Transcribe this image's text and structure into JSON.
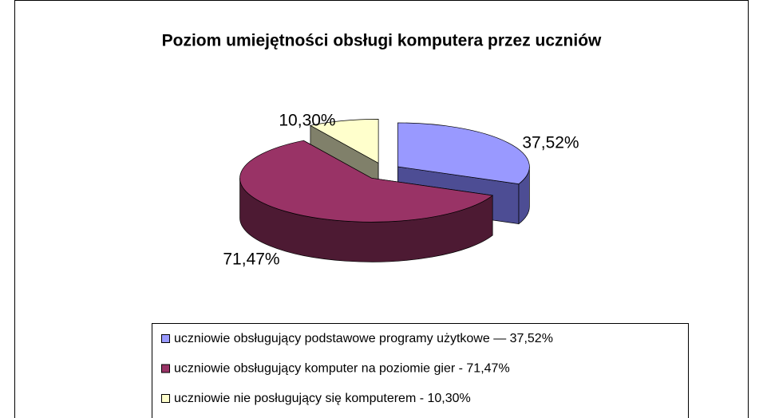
{
  "chart_data": {
    "type": "pie3d",
    "title": "Poziom umiejętności obsługi komputera przez uczniów",
    "categories": [
      "uczniowie obsługujący podstawowe programy użytkowe — 37,52%",
      "uczniowie obsługujący komputer na poziomie gier - 71,47%",
      "uczniowie nie posługujący się komputerem - 10,30%"
    ],
    "values": [
      37.52,
      71.47,
      10.3
    ],
    "value_labels": [
      "37,52%",
      "71,47%",
      "10,30%"
    ],
    "colors": [
      "#9999ff",
      "#993366",
      "#ffffcc"
    ],
    "side_colors": [
      "#4d4d94",
      "#4d1a33",
      "#80806a"
    ],
    "legend": "bottom"
  }
}
